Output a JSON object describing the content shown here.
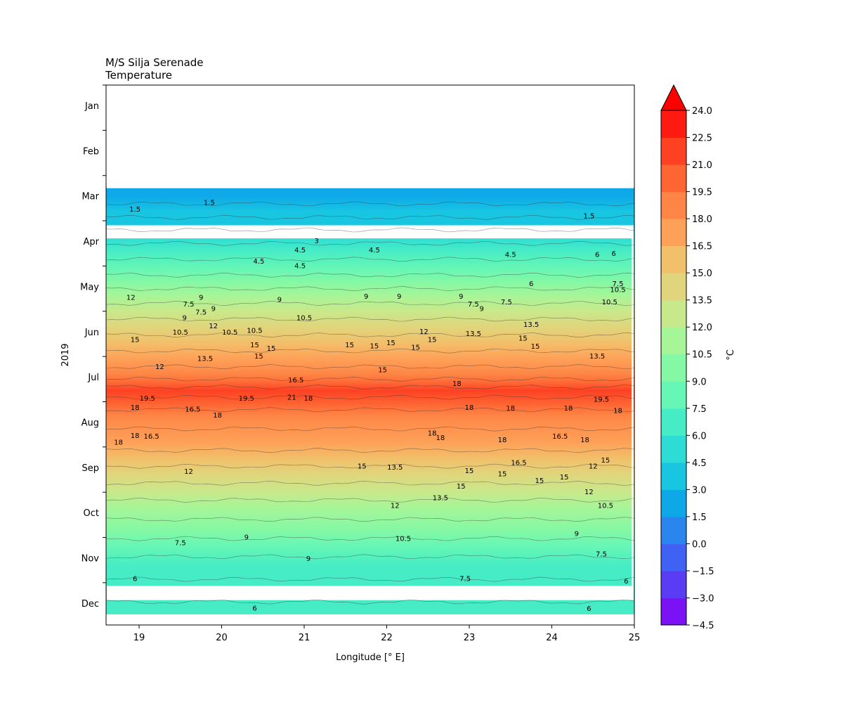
{
  "chart_data": {
    "type": "heatmap",
    "title": [
      "M/S Silja Serenade",
      "Temperature"
    ],
    "xlabel": "Longitude [° E]",
    "ylabel": "2019",
    "xlim": [
      18.6,
      25.0
    ],
    "xticks": [
      "19",
      "20",
      "21",
      "22",
      "23",
      "24",
      "25"
    ],
    "xtick_values": [
      19,
      20,
      21,
      22,
      23,
      24,
      25
    ],
    "yticks": [
      "Jan",
      "Feb",
      "Mar",
      "Apr",
      "May",
      "Jun",
      "Jul",
      "Aug",
      "Sep",
      "Oct",
      "Nov",
      "Dec"
    ],
    "colorbar": {
      "label": "°C",
      "extend": "max",
      "ticks": [
        "24.0",
        "22.5",
        "21.0",
        "19.5",
        "18.0",
        "16.5",
        "15.0",
        "13.5",
        "12.0",
        "10.5",
        "9.0",
        "7.5",
        "6.0",
        "4.5",
        "3.0",
        "1.5",
        "0.0",
        "−1.5",
        "−3.0",
        "−4.5"
      ],
      "levels": [
        -4.5,
        -3.0,
        -1.5,
        0.0,
        1.5,
        3.0,
        4.5,
        6.0,
        7.5,
        9.0,
        10.5,
        12.0,
        13.5,
        15.0,
        16.5,
        18.0,
        19.5,
        21.0,
        22.5,
        24.0
      ],
      "colors": [
        "#7a12f5",
        "#5a3cf5",
        "#3f62f4",
        "#2a86ee",
        "#0ea8e9",
        "#18c6e2",
        "#2edcd6",
        "#45ecc5",
        "#66f6b6",
        "#84f8a4",
        "#a6f598",
        "#c8e98b",
        "#e0d57c",
        "#f2bf6a",
        "#fea158",
        "#fe8545",
        "#ff6433",
        "#fe4123",
        "#fe1a10"
      ],
      "extend_color": "#ff0000"
    },
    "data_gaps": [
      "Jan–Feb",
      "late Mar",
      "mid Nov–Dec"
    ],
    "bands": [
      {
        "month": 3.0,
        "temp": 1.5
      },
      {
        "month": 3.35,
        "temp": 3.0
      },
      {
        "month": 3.6,
        "temp": 3.0
      },
      {
        "month": 3.9,
        "temp": 4.5
      },
      {
        "month": 4.2,
        "temp": 6.0
      },
      {
        "month": 4.6,
        "temp": 7.5
      },
      {
        "month": 4.9,
        "temp": 9.0
      },
      {
        "month": 5.2,
        "temp": 10.5
      },
      {
        "month": 5.55,
        "temp": 12.0
      },
      {
        "month": 5.9,
        "temp": 13.5
      },
      {
        "month": 6.25,
        "temp": 15.0
      },
      {
        "month": 6.6,
        "temp": 16.5
      },
      {
        "month": 6.95,
        "temp": 18.0
      },
      {
        "month": 7.15,
        "temp": 19.5
      },
      {
        "month": 7.3,
        "temp": 21.0
      },
      {
        "month": 7.6,
        "temp": 19.5
      },
      {
        "month": 7.85,
        "temp": 18.0
      },
      {
        "month": 8.45,
        "temp": 16.5
      },
      {
        "month": 8.8,
        "temp": 15.0
      },
      {
        "month": 9.15,
        "temp": 13.5
      },
      {
        "month": 9.55,
        "temp": 12.0
      },
      {
        "month": 9.9,
        "temp": 10.5
      },
      {
        "month": 10.4,
        "temp": 9.0
      },
      {
        "month": 10.75,
        "temp": 7.5
      },
      {
        "month": 11.2,
        "temp": 6.0
      },
      {
        "month": 11.75,
        "temp": 6.0
      },
      {
        "month": 12.2,
        "temp": 6.0
      }
    ],
    "contour_labels": [
      {
        "text": "1.5",
        "lon": 18.95,
        "month": 3.3
      },
      {
        "text": "1.5",
        "lon": 19.85,
        "month": 3.15
      },
      {
        "text": "1.5",
        "lon": 24.45,
        "month": 3.45
      },
      {
        "text": "3",
        "lon": 21.15,
        "month": 4.0
      },
      {
        "text": "4.5",
        "lon": 20.95,
        "month": 4.2
      },
      {
        "text": "4.5",
        "lon": 21.85,
        "month": 4.2
      },
      {
        "text": "4.5",
        "lon": 23.5,
        "month": 4.3
      },
      {
        "text": "4.5",
        "lon": 20.45,
        "month": 4.45
      },
      {
        "text": "4.5",
        "lon": 20.95,
        "month": 4.55
      },
      {
        "text": "6",
        "lon": 24.55,
        "month": 4.3
      },
      {
        "text": "6",
        "lon": 24.75,
        "month": 4.28
      },
      {
        "text": "6",
        "lon": 23.75,
        "month": 4.95
      },
      {
        "text": "9",
        "lon": 19.75,
        "month": 5.25
      },
      {
        "text": "9",
        "lon": 20.7,
        "month": 5.3
      },
      {
        "text": "9",
        "lon": 21.75,
        "month": 5.23
      },
      {
        "text": "9",
        "lon": 22.15,
        "month": 5.23
      },
      {
        "text": "9",
        "lon": 22.9,
        "month": 5.23
      },
      {
        "text": "7.5",
        "lon": 19.6,
        "month": 5.4
      },
      {
        "text": "7.5",
        "lon": 19.75,
        "month": 5.58
      },
      {
        "text": "7.5",
        "lon": 23.05,
        "month": 5.4
      },
      {
        "text": "7.5",
        "lon": 23.45,
        "month": 5.35
      },
      {
        "text": "7.5",
        "lon": 24.8,
        "month": 4.95
      },
      {
        "text": "9",
        "lon": 19.9,
        "month": 5.5
      },
      {
        "text": "9",
        "lon": 23.15,
        "month": 5.5
      },
      {
        "text": "9",
        "lon": 19.55,
        "month": 5.7
      },
      {
        "text": "10.5",
        "lon": 24.8,
        "month": 5.08
      },
      {
        "text": "10.5",
        "lon": 24.7,
        "month": 5.35
      },
      {
        "text": "10.5",
        "lon": 21.0,
        "month": 5.7
      },
      {
        "text": "10.5",
        "lon": 19.5,
        "month": 6.02
      },
      {
        "text": "10.5",
        "lon": 20.1,
        "month": 6.02
      },
      {
        "text": "10.5",
        "lon": 20.4,
        "month": 5.98
      },
      {
        "text": "12",
        "lon": 18.9,
        "month": 5.25
      },
      {
        "text": "12",
        "lon": 19.9,
        "month": 5.88
      },
      {
        "text": "12",
        "lon": 22.45,
        "month": 6.0
      },
      {
        "text": "12",
        "lon": 19.25,
        "month": 6.78
      },
      {
        "text": "13.5",
        "lon": 19.8,
        "month": 6.6
      },
      {
        "text": "13.5",
        "lon": 23.05,
        "month": 6.05
      },
      {
        "text": "13.5",
        "lon": 23.75,
        "month": 5.85
      },
      {
        "text": "13.5",
        "lon": 24.55,
        "month": 6.55
      },
      {
        "text": "15",
        "lon": 18.95,
        "month": 6.18
      },
      {
        "text": "15",
        "lon": 20.4,
        "month": 6.3
      },
      {
        "text": "15",
        "lon": 20.6,
        "month": 6.38
      },
      {
        "text": "15",
        "lon": 20.45,
        "month": 6.55
      },
      {
        "text": "15",
        "lon": 21.55,
        "month": 6.3
      },
      {
        "text": "15",
        "lon": 21.85,
        "month": 6.32
      },
      {
        "text": "15",
        "lon": 22.05,
        "month": 6.25
      },
      {
        "text": "15",
        "lon": 22.35,
        "month": 6.35
      },
      {
        "text": "15",
        "lon": 22.55,
        "month": 6.18
      },
      {
        "text": "15",
        "lon": 21.95,
        "month": 6.85
      },
      {
        "text": "15",
        "lon": 23.65,
        "month": 6.15
      },
      {
        "text": "15",
        "lon": 23.8,
        "month": 6.33
      },
      {
        "text": "16.5",
        "lon": 20.9,
        "month": 7.08
      },
      {
        "text": "18",
        "lon": 22.85,
        "month": 7.15
      },
      {
        "text": "19.5",
        "lon": 19.1,
        "month": 7.48
      },
      {
        "text": "19.5",
        "lon": 20.3,
        "month": 7.48
      },
      {
        "text": "21",
        "lon": 20.85,
        "month": 7.46
      },
      {
        "text": "18",
        "lon": 21.05,
        "month": 7.48
      },
      {
        "text": "18",
        "lon": 18.95,
        "month": 7.68
      },
      {
        "text": "16.5",
        "lon": 19.65,
        "month": 7.72
      },
      {
        "text": "18",
        "lon": 19.95,
        "month": 7.85
      },
      {
        "text": "18",
        "lon": 23.0,
        "month": 7.68
      },
      {
        "text": "18",
        "lon": 23.5,
        "month": 7.7
      },
      {
        "text": "18",
        "lon": 24.2,
        "month": 7.7
      },
      {
        "text": "19.5",
        "lon": 24.6,
        "month": 7.5
      },
      {
        "text": "18",
        "lon": 24.8,
        "month": 7.75
      },
      {
        "text": "18",
        "lon": 18.95,
        "month": 8.3
      },
      {
        "text": "16.5",
        "lon": 19.15,
        "month": 8.32
      },
      {
        "text": "18",
        "lon": 18.75,
        "month": 8.45
      },
      {
        "text": "18",
        "lon": 22.55,
        "month": 8.25
      },
      {
        "text": "18",
        "lon": 22.65,
        "month": 8.35
      },
      {
        "text": "18",
        "lon": 23.4,
        "month": 8.4
      },
      {
        "text": "16.5",
        "lon": 24.1,
        "month": 8.32
      },
      {
        "text": "18",
        "lon": 24.4,
        "month": 8.4
      },
      {
        "text": "16.5",
        "lon": 23.6,
        "month": 8.9
      },
      {
        "text": "15",
        "lon": 24.65,
        "month": 8.85
      },
      {
        "text": "12",
        "lon": 24.5,
        "month": 8.98
      },
      {
        "text": "12",
        "lon": 19.6,
        "month": 9.1
      },
      {
        "text": "15",
        "lon": 21.7,
        "month": 8.98
      },
      {
        "text": "13.5",
        "lon": 22.1,
        "month": 9.0
      },
      {
        "text": "15",
        "lon": 23.0,
        "month": 9.08
      },
      {
        "text": "15",
        "lon": 23.4,
        "month": 9.15
      },
      {
        "text": "15",
        "lon": 23.85,
        "month": 9.3
      },
      {
        "text": "15",
        "lon": 24.15,
        "month": 9.22
      },
      {
        "text": "15",
        "lon": 22.9,
        "month": 9.42
      },
      {
        "text": "12",
        "lon": 24.45,
        "month": 9.55
      },
      {
        "text": "13.5",
        "lon": 22.65,
        "month": 9.68
      },
      {
        "text": "12",
        "lon": 22.1,
        "month": 9.85
      },
      {
        "text": "10.5",
        "lon": 24.65,
        "month": 9.85
      },
      {
        "text": "9",
        "lon": 20.3,
        "month": 10.55
      },
      {
        "text": "7.5",
        "lon": 19.5,
        "month": 10.67
      },
      {
        "text": "10.5",
        "lon": 22.2,
        "month": 10.58
      },
      {
        "text": "9",
        "lon": 24.3,
        "month": 10.47
      },
      {
        "text": "9",
        "lon": 21.05,
        "month": 11.02
      },
      {
        "text": "7.5",
        "lon": 24.6,
        "month": 10.92
      },
      {
        "text": "6",
        "lon": 18.95,
        "month": 11.47
      },
      {
        "text": "7.5",
        "lon": 22.95,
        "month": 11.47
      },
      {
        "text": "6",
        "lon": 24.9,
        "month": 11.52
      },
      {
        "text": "6",
        "lon": 20.4,
        "month": 12.12
      },
      {
        "text": "6",
        "lon": 24.45,
        "month": 12.13
      }
    ]
  }
}
